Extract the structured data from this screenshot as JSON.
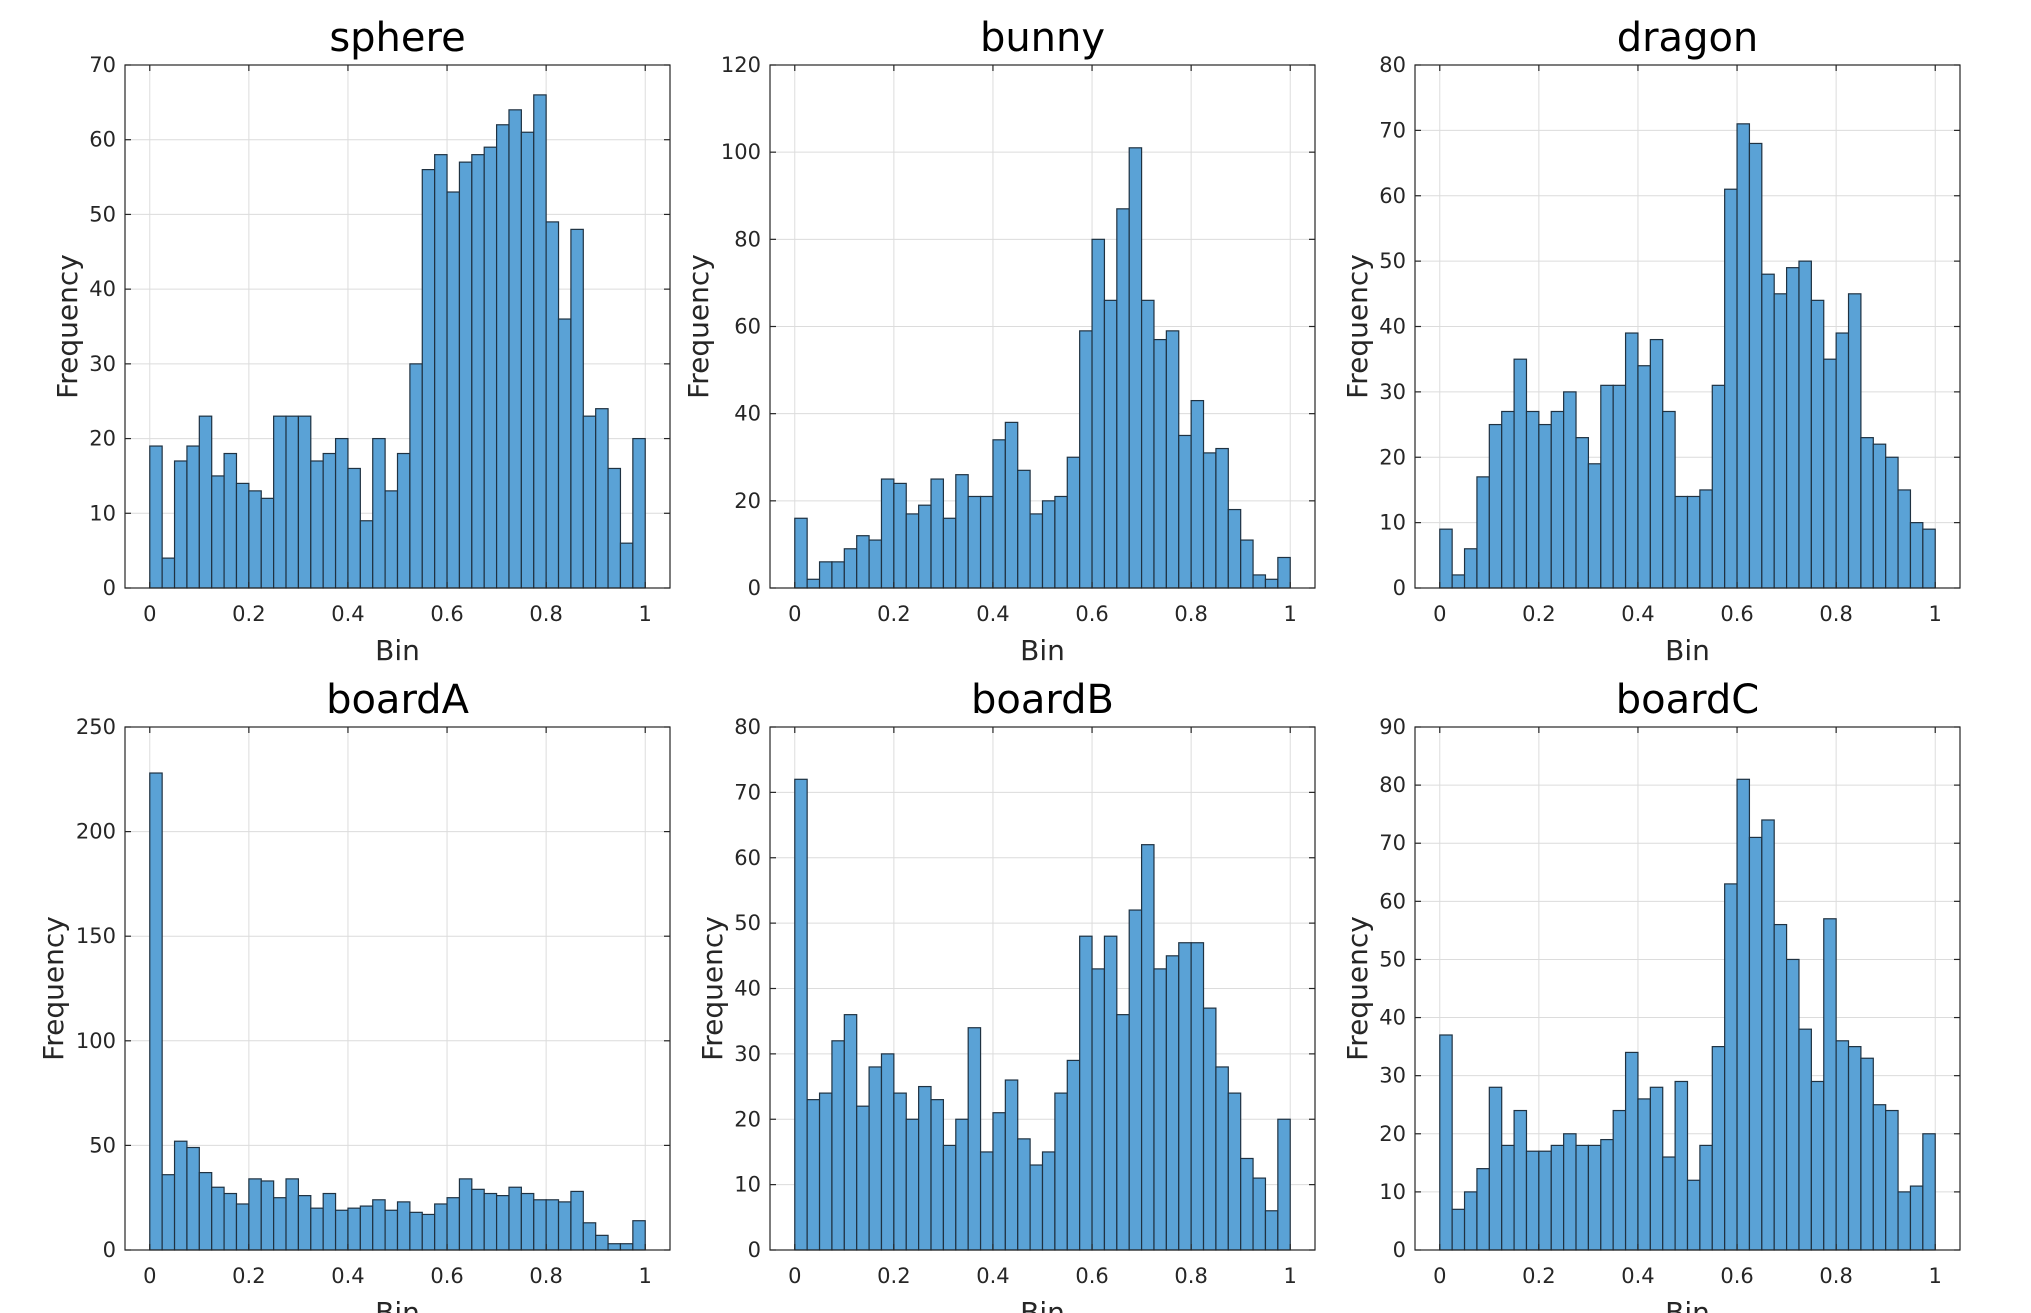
{
  "colors": {
    "bar_fill": "#5aa2d6",
    "bar_edge": "#1f3242",
    "grid": "#dcdcdc",
    "axis": "#262626"
  },
  "chart_data": [
    {
      "type": "bar",
      "title": "sphere",
      "xlabel": "Bin",
      "ylabel": "Frequency",
      "xlim": [
        -0.05,
        1.05
      ],
      "ylim": [
        0,
        70
      ],
      "xticks": [
        0,
        0.2,
        0.4,
        0.6,
        0.8,
        1
      ],
      "xtick_labels": [
        "0",
        "0.2",
        "0.4",
        "0.6",
        "0.8",
        "1"
      ],
      "yticks": [
        0,
        10,
        20,
        30,
        40,
        50,
        60,
        70
      ],
      "ytick_labels": [
        "0",
        "10",
        "20",
        "30",
        "40",
        "50",
        "60",
        "70"
      ],
      "grid": true,
      "bin_range": [
        0,
        1
      ],
      "values": [
        19,
        4,
        17,
        19,
        23,
        15,
        18,
        14,
        13,
        12,
        23,
        23,
        23,
        17,
        18,
        20,
        16,
        9,
        20,
        13,
        18,
        30,
        56,
        58,
        53,
        57,
        58,
        59,
        62,
        64,
        61,
        66,
        49,
        36,
        48,
        23,
        24,
        16,
        6,
        20
      ]
    },
    {
      "type": "bar",
      "title": "bunny",
      "xlabel": "Bin",
      "ylabel": "Frequency",
      "xlim": [
        -0.05,
        1.05
      ],
      "ylim": [
        0,
        120
      ],
      "xticks": [
        0,
        0.2,
        0.4,
        0.6,
        0.8,
        1
      ],
      "xtick_labels": [
        "0",
        "0.2",
        "0.4",
        "0.6",
        "0.8",
        "1"
      ],
      "yticks": [
        0,
        20,
        40,
        60,
        80,
        100,
        120
      ],
      "ytick_labels": [
        "0",
        "20",
        "40",
        "60",
        "80",
        "100",
        "120"
      ],
      "grid": true,
      "bin_range": [
        0,
        1
      ],
      "values": [
        16,
        2,
        6,
        6,
        9,
        12,
        11,
        25,
        24,
        17,
        19,
        25,
        16,
        26,
        21,
        21,
        34,
        38,
        27,
        17,
        20,
        21,
        30,
        59,
        80,
        66,
        87,
        101,
        66,
        57,
        59,
        35,
        43,
        31,
        32,
        18,
        11,
        3,
        2,
        7
      ]
    },
    {
      "type": "bar",
      "title": "dragon",
      "xlabel": "Bin",
      "ylabel": "Frequency",
      "xlim": [
        -0.05,
        1.05
      ],
      "ylim": [
        0,
        80
      ],
      "xticks": [
        0,
        0.2,
        0.4,
        0.6,
        0.8,
        1
      ],
      "xtick_labels": [
        "0",
        "0.2",
        "0.4",
        "0.6",
        "0.8",
        "1"
      ],
      "yticks": [
        0,
        10,
        20,
        30,
        40,
        50,
        60,
        70,
        80
      ],
      "ytick_labels": [
        "0",
        "10",
        "20",
        "30",
        "40",
        "50",
        "60",
        "70",
        "80"
      ],
      "grid": true,
      "bin_range": [
        0,
        1
      ],
      "values": [
        9,
        2,
        6,
        17,
        25,
        27,
        35,
        27,
        25,
        27,
        30,
        23,
        19,
        31,
        31,
        39,
        34,
        38,
        27,
        14,
        14,
        15,
        31,
        61,
        71,
        68,
        48,
        45,
        49,
        50,
        44,
        35,
        39,
        45,
        23,
        22,
        20,
        15,
        10,
        9
      ]
    },
    {
      "type": "bar",
      "title": "boardA",
      "xlabel": "Bin",
      "ylabel": "Frequency",
      "xlim": [
        -0.05,
        1.05
      ],
      "ylim": [
        0,
        250
      ],
      "xticks": [
        0,
        0.2,
        0.4,
        0.6,
        0.8,
        1
      ],
      "xtick_labels": [
        "0",
        "0.2",
        "0.4",
        "0.6",
        "0.8",
        "1"
      ],
      "yticks": [
        0,
        50,
        100,
        150,
        200,
        250
      ],
      "ytick_labels": [
        "0",
        "50",
        "100",
        "150",
        "200",
        "250"
      ],
      "grid": true,
      "bin_range": [
        0,
        1
      ],
      "values": [
        228,
        36,
        52,
        49,
        37,
        30,
        27,
        22,
        34,
        33,
        25,
        34,
        26,
        20,
        27,
        19,
        20,
        21,
        24,
        19,
        23,
        18,
        17,
        22,
        25,
        34,
        29,
        27,
        26,
        30,
        27,
        24,
        24,
        23,
        28,
        13,
        7,
        3,
        3,
        14
      ]
    },
    {
      "type": "bar",
      "title": "boardB",
      "xlabel": "Bin",
      "ylabel": "Frequency",
      "xlim": [
        -0.05,
        1.05
      ],
      "ylim": [
        0,
        80
      ],
      "xticks": [
        0,
        0.2,
        0.4,
        0.6,
        0.8,
        1
      ],
      "xtick_labels": [
        "0",
        "0.2",
        "0.4",
        "0.6",
        "0.8",
        "1"
      ],
      "yticks": [
        0,
        10,
        20,
        30,
        40,
        50,
        60,
        70,
        80
      ],
      "ytick_labels": [
        "0",
        "10",
        "20",
        "30",
        "40",
        "50",
        "60",
        "70",
        "80"
      ],
      "grid": true,
      "bin_range": [
        0,
        1
      ],
      "values": [
        72,
        23,
        24,
        32,
        36,
        22,
        28,
        30,
        24,
        20,
        25,
        23,
        16,
        20,
        34,
        15,
        21,
        26,
        17,
        13,
        15,
        24,
        29,
        48,
        43,
        48,
        36,
        52,
        62,
        43,
        45,
        47,
        47,
        37,
        28,
        24,
        14,
        11,
        6,
        20
      ]
    },
    {
      "type": "bar",
      "title": "boardC",
      "xlabel": "Bin",
      "ylabel": "Frequency",
      "xlim": [
        -0.05,
        1.05
      ],
      "ylim": [
        0,
        90
      ],
      "xticks": [
        0,
        0.2,
        0.4,
        0.6,
        0.8,
        1
      ],
      "xtick_labels": [
        "0",
        "0.2",
        "0.4",
        "0.6",
        "0.8",
        "1"
      ],
      "yticks": [
        0,
        10,
        20,
        30,
        40,
        50,
        60,
        70,
        80,
        90
      ],
      "ytick_labels": [
        "0",
        "10",
        "20",
        "30",
        "40",
        "50",
        "60",
        "70",
        "80",
        "90"
      ],
      "grid": true,
      "bin_range": [
        0,
        1
      ],
      "values": [
        37,
        7,
        10,
        14,
        28,
        18,
        24,
        17,
        17,
        18,
        20,
        18,
        18,
        19,
        24,
        34,
        26,
        28,
        16,
        29,
        12,
        18,
        35,
        63,
        81,
        71,
        74,
        56,
        50,
        38,
        29,
        57,
        36,
        35,
        33,
        25,
        24,
        10,
        11,
        20
      ]
    }
  ]
}
